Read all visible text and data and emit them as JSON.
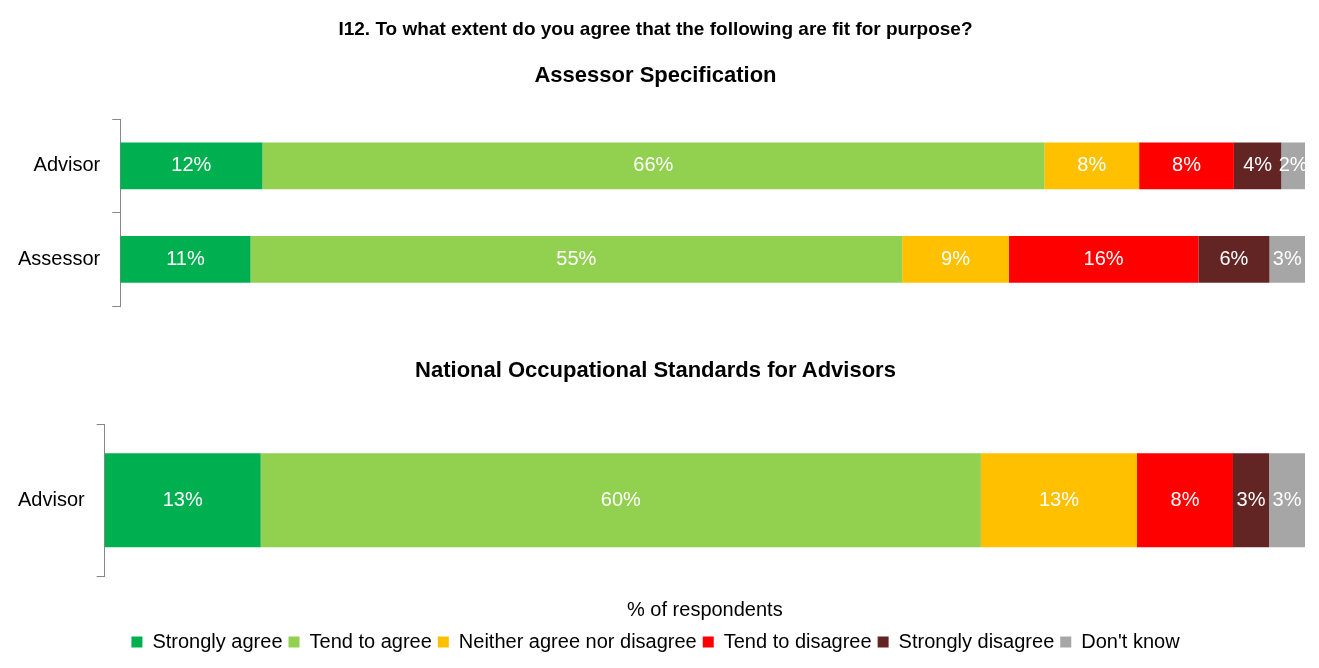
{
  "chart_data": [
    {
      "type": "bar",
      "orientation": "horizontal",
      "stacked": true,
      "title": "I12. To what extent do you agree that the following are fit for purpose?",
      "subtitle": "Assessor Specification",
      "categories": [
        "Advisor",
        "Assessor"
      ],
      "tick_labels": "y",
      "grid": false,
      "legend": false,
      "series": [
        {
          "color": "#00b050",
          "values": [
            12,
            11
          ],
          "value_labels": [
            "12%",
            "11%"
          ]
        },
        {
          "color": "#92d050",
          "values": [
            66,
            55
          ],
          "value_labels": [
            "66%",
            "55%"
          ]
        },
        {
          "color": "#ffc000",
          "values": [
            8,
            9
          ],
          "value_labels": [
            "8%",
            "9%"
          ]
        },
        {
          "color": "#ff0000",
          "values": [
            8,
            16
          ],
          "value_labels": [
            "8%",
            "16%"
          ]
        },
        {
          "color": "#632523",
          "values": [
            4,
            6
          ],
          "value_labels": [
            "4%",
            "6%"
          ]
        },
        {
          "color": "#a6a6a6",
          "values": [
            2,
            3
          ],
          "value_labels": [
            "2%",
            "3%"
          ]
        }
      ]
    },
    {
      "type": "bar",
      "orientation": "horizontal",
      "stacked": true,
      "title": "National Occupational Standards for Advisors",
      "xlabel": "% of respondents",
      "categories": [
        "Advisor"
      ],
      "tick_labels": "y",
      "grid": false,
      "legend": "bottom",
      "series": [
        {
          "name": "Strongly agree",
          "color": "#00b050",
          "values": [
            13
          ],
          "value_labels": [
            "13%"
          ]
        },
        {
          "name": "Tend to agree",
          "color": "#92d050",
          "values": [
            60
          ],
          "value_labels": [
            "60%"
          ]
        },
        {
          "name": "Neither agree nor disagree",
          "color": "#ffc000",
          "values": [
            13
          ],
          "value_labels": [
            "13%"
          ]
        },
        {
          "name": "Tend to disagree",
          "color": "#ff0000",
          "values": [
            8
          ],
          "value_labels": [
            "8%"
          ]
        },
        {
          "name": "Strongly disagree",
          "color": "#632523",
          "values": [
            3
          ],
          "value_labels": [
            "3%"
          ]
        },
        {
          "name": "Don't know",
          "color": "#a6a6a6",
          "values": [
            3
          ],
          "value_labels": [
            "3%"
          ]
        }
      ]
    }
  ]
}
